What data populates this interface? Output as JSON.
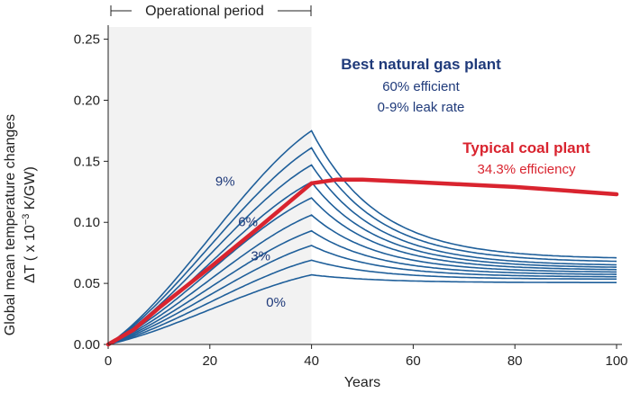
{
  "chart_data": {
    "type": "line",
    "xlabel": "Years",
    "ylabel_line1": "Global mean temperature changes",
    "ylabel_line2_prefix": "ΔT ( x 10",
    "ylabel_line2_exp": "−3",
    "ylabel_line2_suffix": " K/GW)",
    "xlim": [
      0,
      100
    ],
    "ylim": [
      0,
      0.26
    ],
    "x_ticks": [
      "0",
      "20",
      "40",
      "60",
      "80",
      "100"
    ],
    "y_ticks": [
      "0.00",
      "0.05",
      "0.10",
      "0.15",
      "0.20",
      "0.25"
    ],
    "operational_period": {
      "label": "Operational period",
      "start": 0,
      "end": 40
    },
    "gas": {
      "title": "Best natural gas plant",
      "line1": "60% efficient",
      "line2": "0-9% leak rate",
      "color": "#1f5f9a",
      "peak_values": [
        0.057,
        0.069,
        0.081,
        0.093,
        0.106,
        0.12,
        0.133,
        0.147,
        0.161,
        0.175
      ],
      "end_values": [
        0.055,
        0.058,
        0.06,
        0.062,
        0.064,
        0.066,
        0.068,
        0.07,
        0.073,
        0.076
      ],
      "labels": [
        {
          "text": "0%",
          "x": 33,
          "y": 0.031
        },
        {
          "text": "3%",
          "x": 30,
          "y": 0.069
        },
        {
          "text": "6%",
          "x": 27.5,
          "y": 0.097
        },
        {
          "text": "9%",
          "x": 23,
          "y": 0.13
        }
      ]
    },
    "coal": {
      "title": "Typical coal plant",
      "line1": "34.3% efficiency",
      "color": "#d9242f",
      "x": [
        0,
        5,
        10,
        20,
        30,
        40,
        45,
        50,
        60,
        70,
        80,
        90,
        100
      ],
      "y": [
        0.0,
        0.012,
        0.03,
        0.063,
        0.097,
        0.132,
        0.135,
        0.135,
        0.133,
        0.131,
        0.129,
        0.126,
        0.123
      ]
    }
  }
}
